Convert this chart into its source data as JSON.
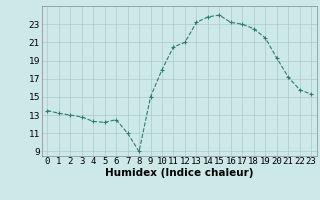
{
  "x": [
    0,
    1,
    2,
    3,
    4,
    5,
    6,
    7,
    8,
    9,
    10,
    11,
    12,
    13,
    14,
    15,
    16,
    17,
    18,
    19,
    20,
    21,
    22,
    23
  ],
  "y": [
    13.5,
    13.2,
    13.0,
    12.8,
    12.3,
    12.2,
    12.5,
    11.0,
    9.0,
    15.0,
    18.0,
    20.5,
    21.0,
    23.2,
    23.8,
    24.0,
    23.2,
    23.0,
    22.5,
    21.5,
    19.3,
    17.2,
    15.8,
    15.3
  ],
  "title": "",
  "xlabel": "Humidex (Indice chaleur)",
  "ylabel": "",
  "xlim": [
    -0.5,
    23.5
  ],
  "ylim": [
    8.5,
    25.0
  ],
  "yticks": [
    9,
    11,
    13,
    15,
    17,
    19,
    21,
    23
  ],
  "xticks": [
    0,
    1,
    2,
    3,
    4,
    5,
    6,
    7,
    8,
    9,
    10,
    11,
    12,
    13,
    14,
    15,
    16,
    17,
    18,
    19,
    20,
    21,
    22,
    23
  ],
  "line_color": "#2e7d6e",
  "marker": "+",
  "bg_color": "#cce8e8",
  "grid_color": "#b0c8c8",
  "xlabel_fontsize": 7.5,
  "tick_fontsize": 6.5
}
